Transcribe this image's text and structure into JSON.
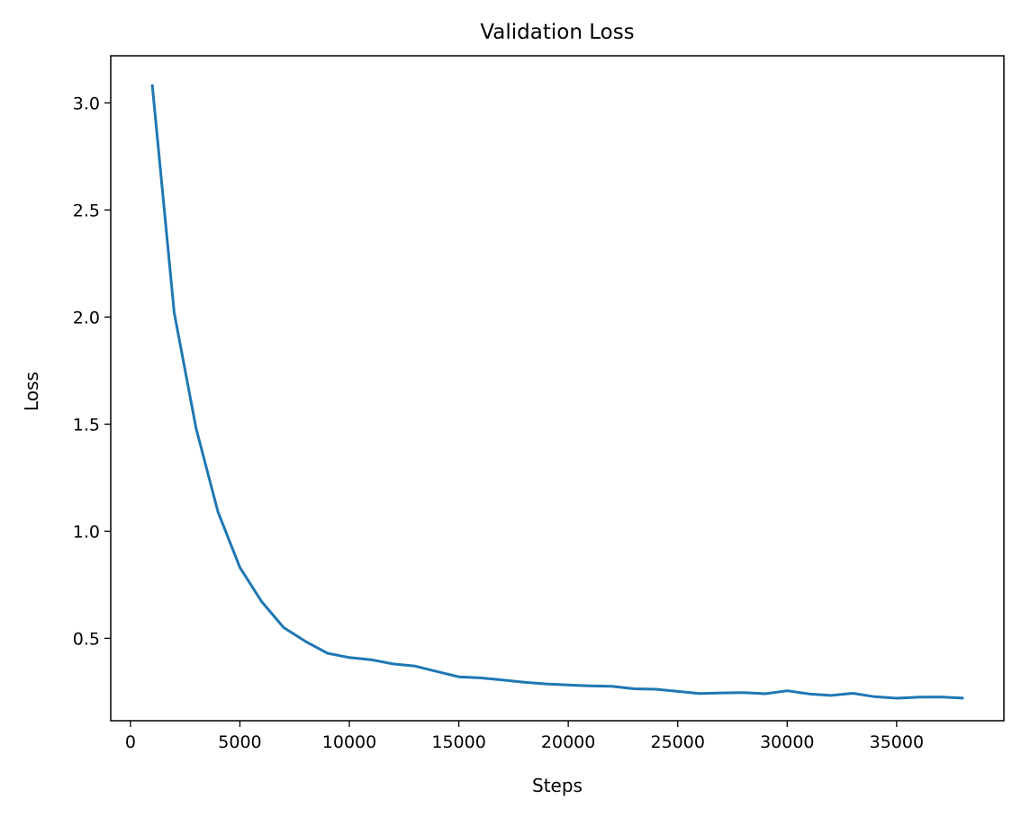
{
  "chart_data": {
    "type": "line",
    "title": "Validation Loss",
    "xlabel": "Steps",
    "ylabel": "Loss",
    "xlim": [
      -900,
      39900
    ],
    "ylim": [
      0.115,
      3.22
    ],
    "xticks": [
      0,
      5000,
      10000,
      15000,
      20000,
      25000,
      30000,
      35000
    ],
    "yticks": [
      0.5,
      1.0,
      1.5,
      2.0,
      2.5,
      3.0
    ],
    "xtick_labels": [
      "0",
      "5000",
      "10000",
      "15000",
      "20000",
      "25000",
      "30000",
      "35000"
    ],
    "ytick_labels": [
      "0.5",
      "1.0",
      "1.5",
      "2.0",
      "2.5",
      "3.0"
    ],
    "grid": false,
    "legend": false,
    "series": [
      {
        "color": "#1f77b4",
        "x": [
          1000,
          2000,
          3000,
          4000,
          5000,
          6000,
          7000,
          8000,
          9000,
          10000,
          11000,
          12000,
          13000,
          14000,
          15000,
          16000,
          17000,
          18000,
          19000,
          20000,
          21000,
          22000,
          23000,
          24000,
          25000,
          26000,
          27000,
          28000,
          29000,
          30000,
          31000,
          32000,
          33000,
          34000,
          35000,
          36000,
          37000,
          38000
        ],
        "y": [
          3.08,
          2.02,
          1.48,
          1.09,
          0.83,
          0.67,
          0.55,
          0.485,
          0.43,
          0.41,
          0.4,
          0.38,
          0.37,
          0.345,
          0.32,
          0.315,
          0.305,
          0.295,
          0.287,
          0.282,
          0.278,
          0.276,
          0.264,
          0.262,
          0.252,
          0.242,
          0.245,
          0.246,
          0.241,
          0.255,
          0.24,
          0.233,
          0.243,
          0.227,
          0.22,
          0.225,
          0.226,
          0.221
        ]
      }
    ]
  }
}
